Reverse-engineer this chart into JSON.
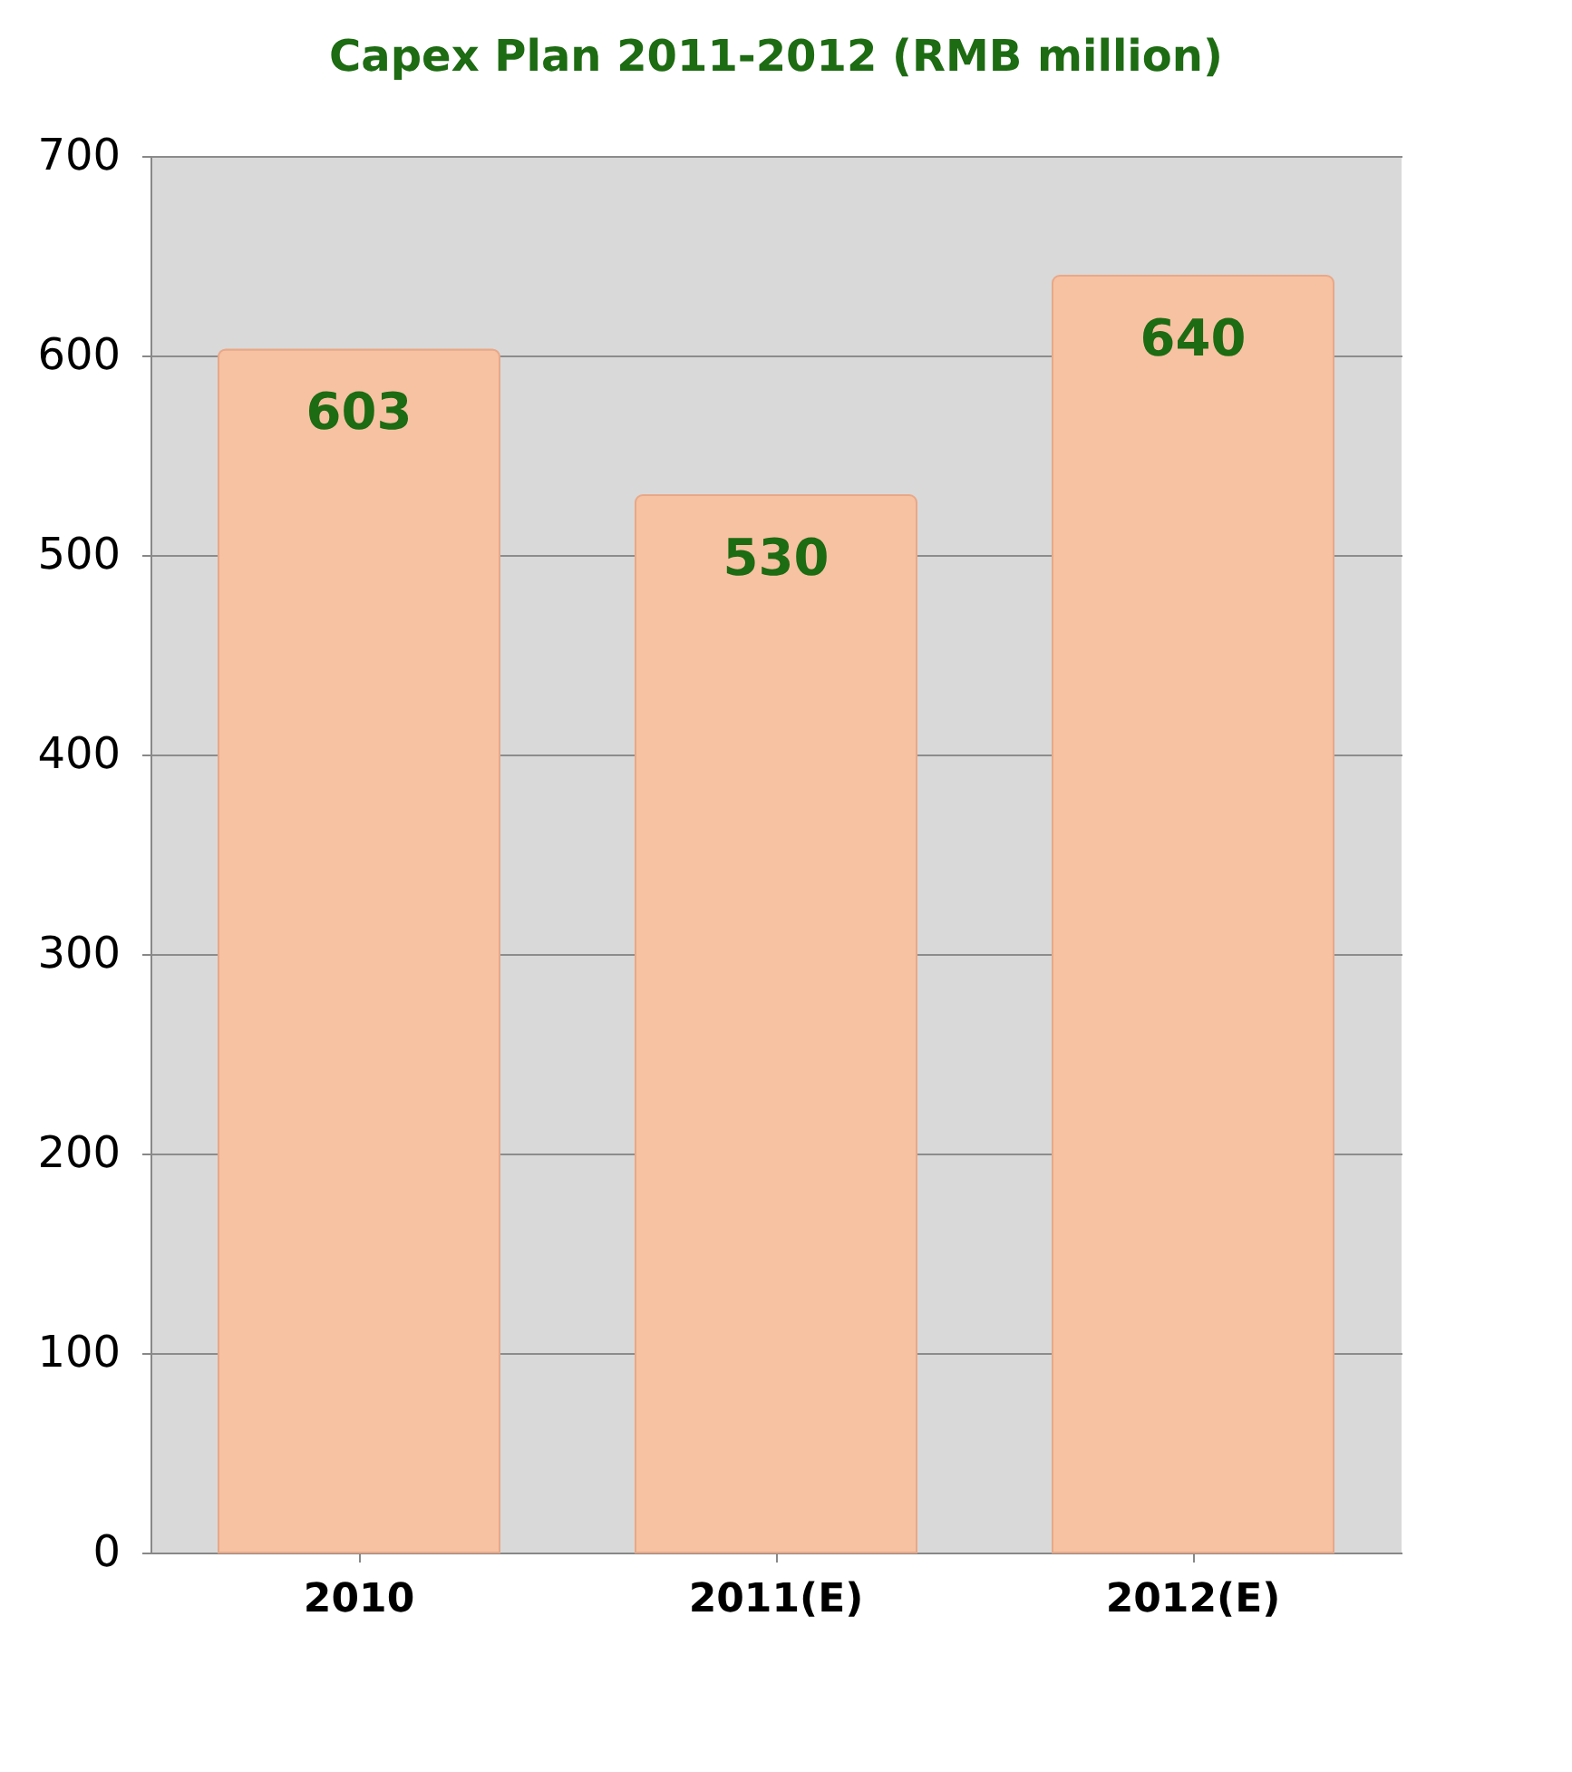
{
  "chart_data": {
    "type": "bar",
    "title": "Capex Plan 2011-2012 (RMB million)",
    "categories": [
      "2010",
      "2011(E)",
      "2012(E)"
    ],
    "values": [
      603,
      530,
      640
    ],
    "color": "#f7c2a2",
    "ylim": [
      0,
      700
    ],
    "yticks": [
      0,
      100,
      200,
      300,
      400,
      500,
      600,
      700
    ],
    "grid": "y",
    "data_labels": true
  }
}
